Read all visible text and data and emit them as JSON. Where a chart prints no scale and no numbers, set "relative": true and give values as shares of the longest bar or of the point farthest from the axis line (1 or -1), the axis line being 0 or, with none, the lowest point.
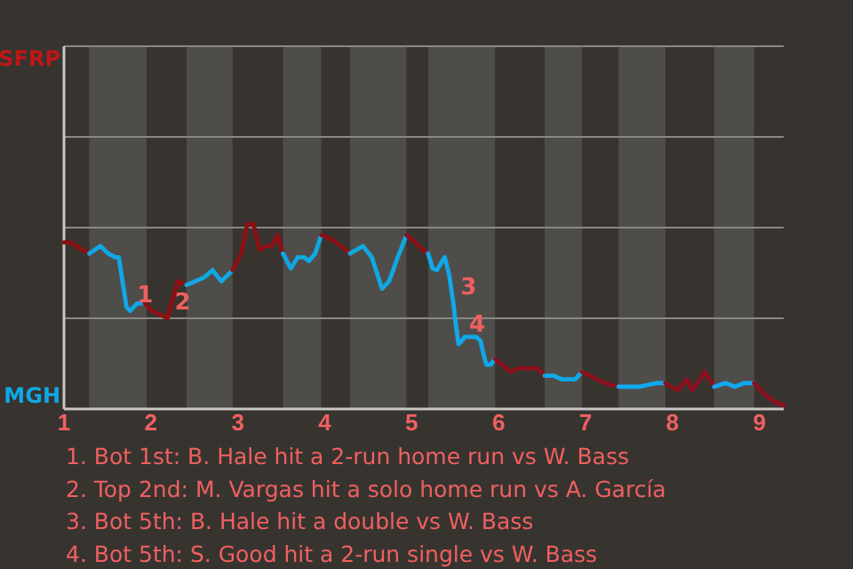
{
  "chart_data": {
    "type": "line",
    "relative": true,
    "xlim": [
      1,
      9.28
    ],
    "xticks": [
      1,
      2,
      3,
      4,
      5,
      6,
      7,
      8,
      9
    ],
    "marker": "none",
    "line_style": "solid",
    "series": [
      {
        "color": "#8c1010",
        "x": [
          1,
          1.08,
          1.21,
          1.29
        ],
        "values": [
          0.9,
          0.9,
          0.86,
          0.84
        ]
      },
      {
        "color": "#10a8e6",
        "x": [
          1.29,
          1.42,
          1.51,
          1.59,
          1.63,
          1.72,
          1.76,
          1.84,
          1.93
        ],
        "values": [
          0.84,
          0.88,
          0.84,
          0.82,
          0.82,
          0.55,
          0.53,
          0.57,
          0.57
        ]
      },
      {
        "color": "#8c1012",
        "x": [
          1.93,
          2.01,
          2.11,
          2.19,
          2.31,
          2.41
        ],
        "values": [
          0.57,
          0.53,
          0.51,
          0.49,
          0.69,
          0.67
        ]
      },
      {
        "color": "#10a8e4",
        "x": [
          2.41,
          2.51,
          2.61,
          2.71,
          2.81,
          2.94
        ],
        "values": [
          0.67,
          0.69,
          0.71,
          0.75,
          0.69,
          0.75
        ]
      },
      {
        "color": "#8c1014",
        "x": [
          2.94,
          3.04,
          3.11,
          3.18,
          3.25,
          3.32,
          3.39,
          3.46,
          3.52
        ],
        "values": [
          0.75,
          0.84,
          1,
          1,
          0.86,
          0.88,
          0.88,
          0.94,
          0.84
        ]
      },
      {
        "color": "#10a8e2",
        "x": [
          3.52,
          3.61,
          3.69,
          3.76,
          3.82,
          3.89,
          3.96
        ],
        "values": [
          0.84,
          0.76,
          0.82,
          0.82,
          0.8,
          0.84,
          0.94
        ]
      },
      {
        "color": "#8c1016",
        "x": [
          3.96,
          4.06,
          4.19,
          4.29
        ],
        "values": [
          0.94,
          0.92,
          0.88,
          0.84
        ]
      },
      {
        "color": "#10a8e0",
        "x": [
          4.29,
          4.44,
          4.54,
          4.66,
          4.74,
          4.84,
          4.94
        ],
        "values": [
          0.84,
          0.88,
          0.82,
          0.65,
          0.69,
          0.82,
          0.94
        ]
      },
      {
        "color": "#8c1018",
        "x": [
          4.94,
          5.04,
          5.13,
          5.19
        ],
        "values": [
          0.94,
          0.9,
          0.86,
          0.84
        ]
      },
      {
        "color": "#10a8ea",
        "x": [
          5.19,
          5.24,
          5.29,
          5.38,
          5.43,
          5.48,
          5.51,
          5.54,
          5.58,
          5.61,
          5.74,
          5.79,
          5.83,
          5.86,
          5.91,
          5.96
        ],
        "values": [
          0.84,
          0.76,
          0.75,
          0.82,
          0.73,
          0.57,
          0.45,
          0.35,
          0.37,
          0.39,
          0.39,
          0.37,
          0.29,
          0.24,
          0.24,
          0.27
        ]
      },
      {
        "color": "#8c101a",
        "x": [
          5.96,
          6.04,
          6.14,
          6.23,
          6.44,
          6.53
        ],
        "values": [
          0.27,
          0.24,
          0.2,
          0.22,
          0.22,
          0.18
        ]
      },
      {
        "color": "#10a8ec",
        "x": [
          6.53,
          6.63,
          6.73,
          6.81,
          6.88,
          6.96
        ],
        "values": [
          0.18,
          0.18,
          0.16,
          0.16,
          0.16,
          0.2
        ]
      },
      {
        "color": "#8c101c",
        "x": [
          6.96,
          7.05,
          7.22,
          7.38
        ],
        "values": [
          0.2,
          0.18,
          0.14,
          0.12
        ]
      },
      {
        "color": "#10a8ee",
        "x": [
          7.38,
          7.62,
          7.82,
          7.92
        ],
        "values": [
          0.12,
          0.12,
          0.14,
          0.14
        ]
      },
      {
        "color": "#8c101e",
        "x": [
          7.92,
          8.06,
          8.17,
          8.23,
          8.37,
          8.48
        ],
        "values": [
          0.14,
          0.1,
          0.16,
          0.1,
          0.2,
          0.12
        ]
      },
      {
        "color": "#10a8f0",
        "x": [
          8.48,
          8.61,
          8.72,
          8.83,
          8.94
        ],
        "values": [
          0.12,
          0.14,
          0.12,
          0.14,
          0.14
        ]
      },
      {
        "color": "#8c1020",
        "x": [
          8.94,
          9.06,
          9.17,
          9.28
        ],
        "values": [
          0.14,
          0.08,
          0.04,
          0.02
        ]
      }
    ],
    "ref_lines": [
      {
        "axis": "y",
        "value": 0.49,
        "color": "#8a8885"
      },
      {
        "axis": "y",
        "value": 0.98,
        "color": "#8a8885"
      },
      {
        "axis": "y",
        "value": 1.47,
        "color": "#8a8885"
      },
      {
        "axis": "y",
        "value": 1.96,
        "color": "#8a8885"
      }
    ],
    "bands": [
      {
        "axis": "x",
        "from": 1.29,
        "to": 1.95,
        "color": "#4f4d4a"
      },
      {
        "axis": "x",
        "from": 2.41,
        "to": 2.94,
        "color": "#4f4d4a"
      },
      {
        "axis": "x",
        "from": 3.52,
        "to": 3.96,
        "color": "#4f4d4a"
      },
      {
        "axis": "x",
        "from": 4.29,
        "to": 4.94,
        "color": "#4f4d4a"
      },
      {
        "axis": "x",
        "from": 5.19,
        "to": 5.96,
        "color": "#4f4d4a"
      },
      {
        "axis": "x",
        "from": 6.53,
        "to": 6.96,
        "color": "#4f4d4a"
      },
      {
        "axis": "x",
        "from": 7.38,
        "to": 7.92,
        "color": "#4f4d4a"
      },
      {
        "axis": "x",
        "from": 8.48,
        "to": 8.94,
        "color": "#4f4d4a"
      }
    ],
    "annotations": [
      "SFRP",
      "MGH",
      {
        "text": "1",
        "x": 1.76,
        "y": 0.53
      },
      {
        "text": "2",
        "x": 2.19,
        "y": 0.49
      },
      {
        "text": "3",
        "x": 5.48,
        "y": 0.57
      },
      {
        "text": "4",
        "x": 5.58,
        "y": 0.37
      },
      "1. Bot 1st: B. Hale hit a 2-run home run vs W. Bass",
      "2. Top 2nd: M. Vargas hit a solo home run vs A. García",
      "3. Bot 5th: B. Hale hit a double vs W. Bass",
      "4. Bot 5th: S. Good hit a 2-run single vs W. Bass"
    ]
  }
}
